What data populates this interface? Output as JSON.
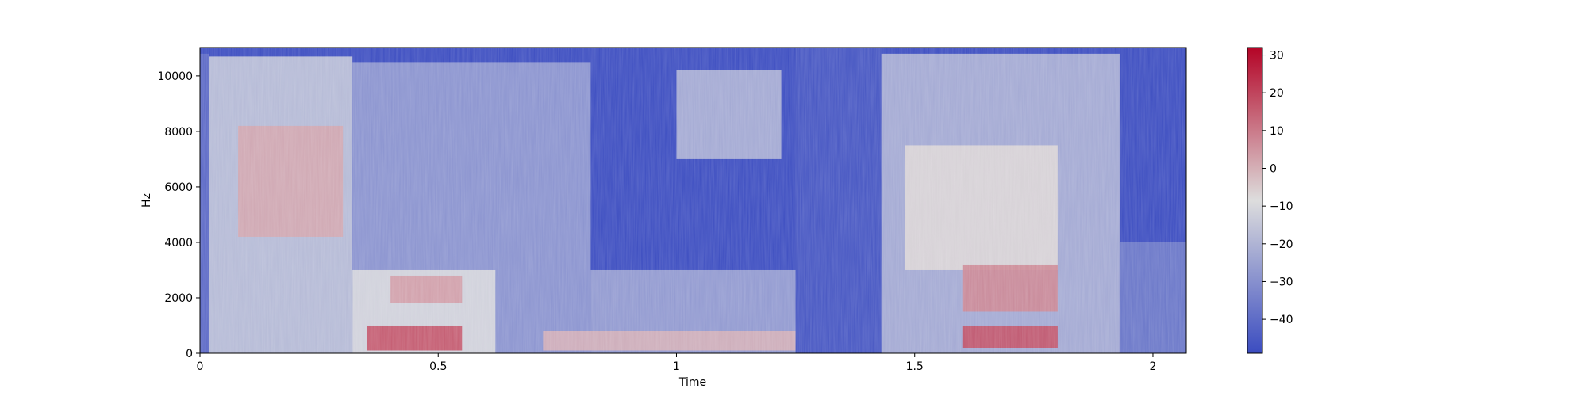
{
  "chart_data": {
    "type": "heatmap",
    "subtype": "spectrogram",
    "title": "",
    "xlabel": "Time",
    "ylabel": "Hz",
    "xlim": [
      0,
      2.07
    ],
    "ylim": [
      0,
      11025
    ],
    "x_ticks": [
      {
        "value": 0,
        "label": "0"
      },
      {
        "value": 0.5,
        "label": "0.5"
      },
      {
        "value": 1,
        "label": "1"
      },
      {
        "value": 1.5,
        "label": "1.5"
      },
      {
        "value": 2,
        "label": "2"
      }
    ],
    "y_ticks": [
      {
        "value": 0,
        "label": "0"
      },
      {
        "value": 2000,
        "label": "2000"
      },
      {
        "value": 4000,
        "label": "4000"
      },
      {
        "value": 6000,
        "label": "6000"
      },
      {
        "value": 8000,
        "label": "8000"
      },
      {
        "value": 10000,
        "label": "10000"
      }
    ],
    "colormap": "coolwarm",
    "colorbar": {
      "vmin": -49,
      "vmax": 32,
      "ticks": [
        {
          "value": 30,
          "label": "30"
        },
        {
          "value": 20,
          "label": "20"
        },
        {
          "value": 10,
          "label": "10"
        },
        {
          "value": 0,
          "label": "0"
        },
        {
          "value": -10,
          "label": "−10"
        },
        {
          "value": -20,
          "label": "−20"
        },
        {
          "value": -30,
          "label": "−30"
        },
        {
          "value": -40,
          "label": "−40"
        }
      ]
    },
    "colors": {
      "min": "#3b4cc0",
      "mid": "#dddddd",
      "max": "#b40426"
    },
    "energy_regions": [
      {
        "t_start": 0.0,
        "t_end": 0.02,
        "f_low": 0,
        "f_high": 10800,
        "level_db": -40
      },
      {
        "t_start": 0.02,
        "t_end": 0.32,
        "f_low": 0,
        "f_high": 10700,
        "level_db": -15
      },
      {
        "t_start": 0.08,
        "t_end": 0.3,
        "f_low": 4200,
        "f_high": 8200,
        "level_db": 2
      },
      {
        "t_start": 0.32,
        "t_end": 0.82,
        "f_low": 0,
        "f_high": 10500,
        "level_db": -27
      },
      {
        "t_start": 0.32,
        "t_end": 0.62,
        "f_low": 0,
        "f_high": 3000,
        "level_db": -10
      },
      {
        "t_start": 0.35,
        "t_end": 0.55,
        "f_low": 100,
        "f_high": 1000,
        "level_db": 18
      },
      {
        "t_start": 0.4,
        "t_end": 0.55,
        "f_low": 1800,
        "f_high": 2800,
        "level_db": 4
      },
      {
        "t_start": 0.82,
        "t_end": 1.25,
        "f_low": 0,
        "f_high": 3000,
        "level_db": -25
      },
      {
        "t_start": 0.72,
        "t_end": 1.25,
        "f_low": 100,
        "f_high": 800,
        "level_db": 0
      },
      {
        "t_start": 1.0,
        "t_end": 1.22,
        "f_low": 7000,
        "f_high": 10200,
        "level_db": -20
      },
      {
        "t_start": 1.25,
        "t_end": 1.43,
        "f_low": 0,
        "f_high": 11025,
        "level_db": -46
      },
      {
        "t_start": 1.43,
        "t_end": 1.93,
        "f_low": 0,
        "f_high": 10800,
        "level_db": -20
      },
      {
        "t_start": 1.48,
        "t_end": 1.8,
        "f_low": 3000,
        "f_high": 7500,
        "level_db": -7
      },
      {
        "t_start": 1.6,
        "t_end": 1.8,
        "f_low": 1500,
        "f_high": 3200,
        "level_db": 8
      },
      {
        "t_start": 1.6,
        "t_end": 1.8,
        "f_low": 200,
        "f_high": 1000,
        "level_db": 18
      },
      {
        "t_start": 1.93,
        "t_end": 2.07,
        "f_low": 0,
        "f_high": 4000,
        "level_db": -36
      }
    ],
    "grid": false,
    "legend": "none"
  }
}
